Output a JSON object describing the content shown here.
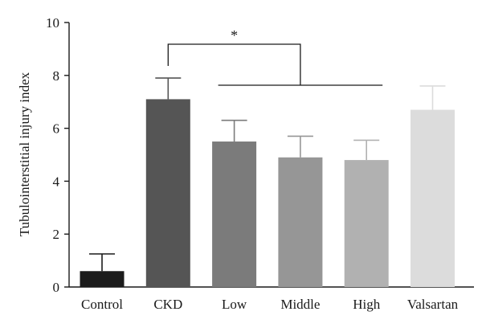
{
  "chart_data": {
    "type": "bar",
    "title": "",
    "xlabel": "",
    "ylabel": "Tubulointerstitial injury index",
    "ylim": [
      0,
      10
    ],
    "yticks": [
      0,
      2,
      4,
      6,
      8,
      10
    ],
    "grid": false,
    "categories": [
      "Control",
      "CKD",
      "Low",
      "Middle",
      "High",
      "Valsartan"
    ],
    "values": [
      0.6,
      7.1,
      5.5,
      4.9,
      4.8,
      6.7
    ],
    "errors": [
      0.65,
      0.8,
      0.8,
      0.8,
      0.75,
      0.9
    ],
    "colors": [
      "#1c1c1c",
      "#555555",
      "#7b7b7b",
      "#969696",
      "#b1b1b1",
      "#dcdcdc"
    ],
    "significance": {
      "label": "*",
      "from": "CKD",
      "to": [
        "Low",
        "Middle",
        "High"
      ]
    }
  }
}
